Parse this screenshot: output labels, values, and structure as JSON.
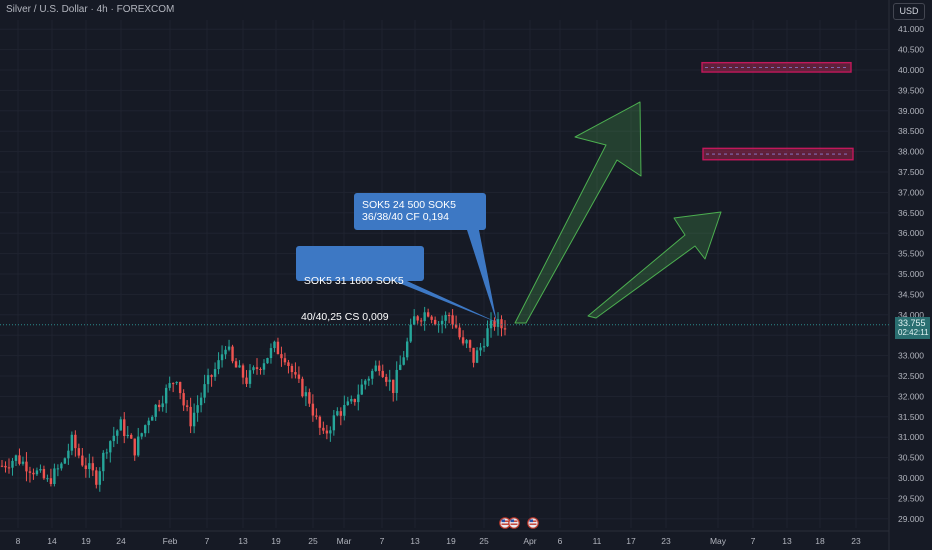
{
  "header": {
    "title": "Silver / U.S. Dollar · 4h · FOREXCOM",
    "currency": "USD"
  },
  "price_badge": {
    "price": "33.755",
    "countdown": "02:42:11"
  },
  "annotations": [
    {
      "line1": "SOK5 24 500 SOK5",
      "line2": "36/38/40 CF 0,194"
    },
    {
      "line1": " SOK5 31 1600 SOK5",
      "line2": "40/40,25 CS 0,009"
    }
  ],
  "colors": {
    "up": "#26a69a",
    "down": "#ef5350",
    "arrow": "#4caf50",
    "zone": "#c2185b",
    "callout": "#3d78c4",
    "background": "#161a25"
  },
  "icons": [
    "us-flag-event-icon",
    "us-flag-event-icon",
    "us-flag-event-icon"
  ],
  "chart_data": {
    "type": "candlestick",
    "title": "Silver / U.S. Dollar · 4h · FOREXCOM",
    "ylim": [
      28.9,
      41.5
    ],
    "y_ticks": [
      "41.000",
      "40.500",
      "40.000",
      "39.500",
      "39.000",
      "38.500",
      "38.000",
      "37.500",
      "37.000",
      "36.500",
      "36.000",
      "35.500",
      "35.000",
      "34.500",
      "34.000",
      "33.500",
      "33.000",
      "32.500",
      "32.000",
      "31.500",
      "31.000",
      "30.500",
      "30.000",
      "29.500",
      "29.000"
    ],
    "x_tick_labels": [
      "8",
      "14",
      "19",
      "24",
      "Feb",
      "7",
      "13",
      "19",
      "25",
      "Mar",
      "7",
      "13",
      "19",
      "25",
      "Apr",
      "6",
      "11",
      "17",
      "23",
      "May",
      "7",
      "13",
      "18",
      "23"
    ],
    "last_price": 33.755,
    "price_path": [
      [
        0,
        30.3
      ],
      [
        4,
        30.5
      ],
      [
        9,
        30.2
      ],
      [
        13,
        29.9
      ],
      [
        17,
        30.3
      ],
      [
        20,
        30.9
      ],
      [
        23,
        30.4
      ],
      [
        27,
        30.0
      ],
      [
        30,
        30.8
      ],
      [
        34,
        31.3
      ],
      [
        38,
        30.7
      ],
      [
        42,
        31.5
      ],
      [
        46,
        32.0
      ],
      [
        50,
        32.5
      ],
      [
        52,
        31.8
      ],
      [
        54,
        31.4
      ],
      [
        58,
        32.2
      ],
      [
        62,
        32.8
      ],
      [
        64,
        33.3
      ],
      [
        66,
        32.8
      ],
      [
        70,
        32.4
      ],
      [
        74,
        32.8
      ],
      [
        78,
        33.2
      ],
      [
        81,
        33.0
      ],
      [
        84,
        32.4
      ],
      [
        88,
        31.9
      ],
      [
        90,
        31.4
      ],
      [
        92,
        31.0
      ],
      [
        96,
        31.6
      ],
      [
        100,
        31.8
      ],
      [
        104,
        32.4
      ],
      [
        108,
        32.8
      ],
      [
        110,
        32.5
      ],
      [
        112,
        32.2
      ],
      [
        116,
        33.3
      ],
      [
        118,
        33.9
      ],
      [
        122,
        34.1
      ],
      [
        125,
        33.8
      ],
      [
        128,
        34.0
      ],
      [
        130,
        33.7
      ],
      [
        132,
        33.2
      ],
      [
        133,
        33.3
      ],
      [
        135,
        32.9
      ],
      [
        137,
        33.2
      ],
      [
        139,
        33.6
      ],
      [
        141,
        33.8
      ],
      [
        143,
        33.7
      ],
      [
        144,
        33.755
      ]
    ],
    "target_zones": [
      {
        "low": 39.95,
        "high": 40.18
      },
      {
        "low": 37.8,
        "high": 38.08
      }
    ],
    "projected_arrows": 2
  }
}
